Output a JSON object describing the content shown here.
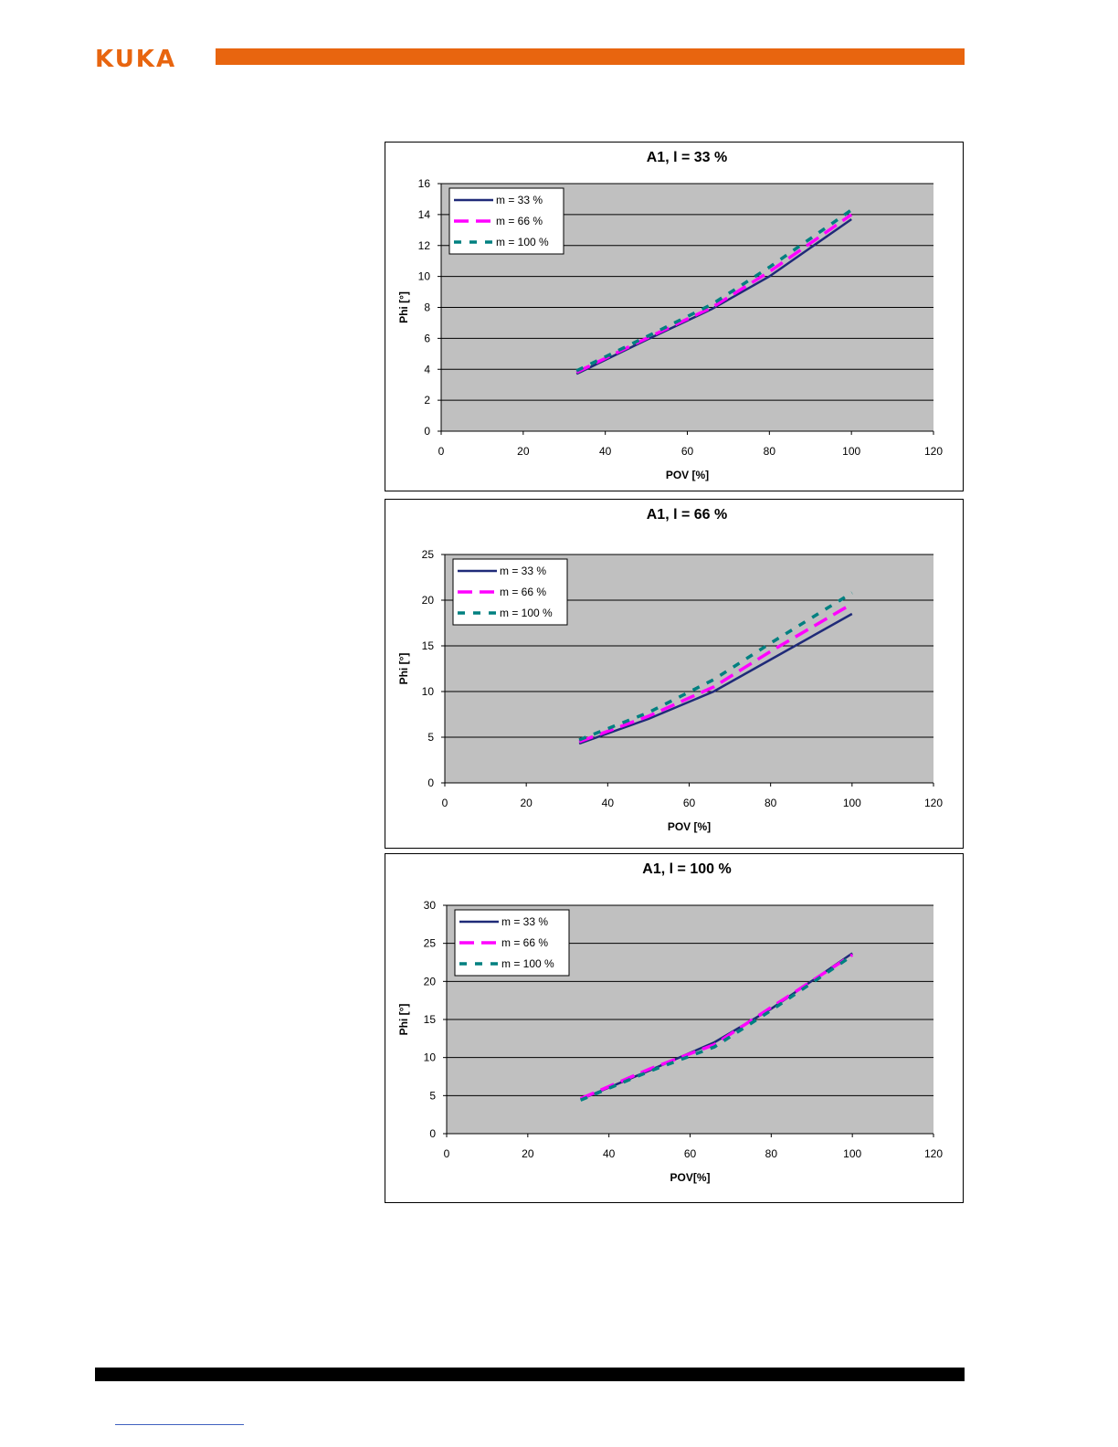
{
  "header": {
    "brand": "KUKA",
    "brand_color": "#e8650f"
  },
  "colors": {
    "m33": "#1f2a78",
    "m66": "#ff00ff",
    "m100": "#008080",
    "plot_bg": "#c0c0c0"
  },
  "chart_data": [
    {
      "type": "line",
      "title": "A1, l = 33 %",
      "xlabel": "POV [%]",
      "ylabel": "Phi [°]",
      "xlim": [
        0,
        120
      ],
      "ylim": [
        0,
        16
      ],
      "xticks": [
        0,
        20,
        40,
        60,
        80,
        100,
        120
      ],
      "yticks": [
        0,
        2,
        4,
        6,
        8,
        10,
        12,
        14,
        16
      ],
      "grid": true,
      "legend": "top-left",
      "series": [
        {
          "name": "m = 33 %",
          "x": [
            33,
            50,
            66,
            80,
            100
          ],
          "y": [
            3.7,
            5.9,
            7.9,
            10.0,
            13.7
          ]
        },
        {
          "name": "m = 66 %",
          "x": [
            33,
            50,
            66,
            80,
            100
          ],
          "y": [
            3.8,
            6.0,
            8.0,
            10.3,
            14.0
          ]
        },
        {
          "name": "m = 100 %",
          "x": [
            33,
            50,
            66,
            80,
            100
          ],
          "y": [
            3.9,
            6.1,
            8.2,
            10.6,
            14.3
          ]
        }
      ]
    },
    {
      "type": "line",
      "title": "A1,  l = 66 %",
      "xlabel": "POV [%]",
      "ylabel": "Phi [°]",
      "xlim": [
        0,
        120
      ],
      "ylim": [
        0,
        25
      ],
      "xticks": [
        0,
        20,
        40,
        60,
        80,
        100,
        120
      ],
      "yticks": [
        0,
        5,
        10,
        15,
        20,
        25
      ],
      "grid": true,
      "legend": "top-left",
      "series": [
        {
          "name": "m = 33 %",
          "x": [
            33,
            50,
            66,
            80,
            100
          ],
          "y": [
            4.3,
            7.0,
            10.0,
            13.5,
            18.5
          ]
        },
        {
          "name": "m = 66 %",
          "x": [
            33,
            50,
            66,
            80,
            100
          ],
          "y": [
            4.5,
            7.3,
            10.5,
            14.4,
            19.6
          ]
        },
        {
          "name": "m = 100 %",
          "x": [
            33,
            50,
            66,
            80,
            100
          ],
          "y": [
            4.7,
            7.7,
            11.3,
            15.3,
            20.8
          ]
        }
      ]
    },
    {
      "type": "line",
      "title": "A1,  l = 100 %",
      "xlabel": "POV[%]",
      "ylabel": "Phi [°]",
      "xlim": [
        0,
        120
      ],
      "ylim": [
        0,
        30
      ],
      "xticks": [
        0,
        20,
        40,
        60,
        80,
        100,
        120
      ],
      "yticks": [
        0,
        5,
        10,
        15,
        20,
        25,
        30
      ],
      "grid": true,
      "legend": "top-left",
      "series": [
        {
          "name": "m = 33 %",
          "x": [
            33,
            50,
            66,
            80,
            100
          ],
          "y": [
            4.5,
            8.3,
            12.0,
            16.4,
            23.7
          ]
        },
        {
          "name": "m = 66 %",
          "x": [
            33,
            50,
            66,
            80,
            100
          ],
          "y": [
            4.6,
            8.5,
            11.7,
            16.6,
            23.5
          ]
        },
        {
          "name": "m = 100 %",
          "x": [
            33,
            50,
            66,
            80,
            100
          ],
          "y": [
            4.4,
            8.2,
            11.4,
            16.2,
            23.4
          ]
        }
      ]
    }
  ]
}
